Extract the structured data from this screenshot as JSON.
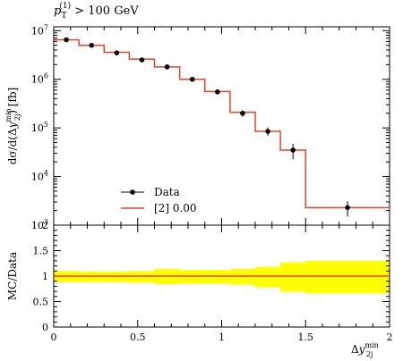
{
  "chart_data": [
    {
      "type": "line",
      "panel": "main",
      "title": "p_T^(1) > 100 GeV",
      "ylabel": "dσ/d(Δy_2j^min) [fb]",
      "yscale": "log",
      "xlim": [
        0,
        2
      ],
      "ylim": [
        1000,
        12000000
      ],
      "y_ticks": [
        {
          "value": 1000,
          "base": "10",
          "exp": "3"
        },
        {
          "value": 10000,
          "base": "10",
          "exp": "4"
        },
        {
          "value": 100000,
          "base": "10",
          "exp": "5"
        },
        {
          "value": 1000000,
          "base": "10",
          "exp": "6"
        },
        {
          "value": 10000000,
          "base": "10",
          "exp": "7"
        }
      ],
      "legend_position": "lower-left",
      "series": [
        {
          "name": "Data",
          "style": "points",
          "color": "#000000",
          "x": [
            0.075,
            0.225,
            0.375,
            0.525,
            0.675,
            0.825,
            0.975,
            1.125,
            1.275,
            1.425,
            1.75
          ],
          "y": [
            6500000,
            5000000,
            3500000,
            2500000,
            1800000,
            1000000,
            550000,
            200000,
            85000,
            35000,
            2300
          ],
          "y_err": [
            0.05,
            0.05,
            0.05,
            0.06,
            0.08,
            0.08,
            0.1,
            0.15,
            0.2,
            0.35,
            0.35
          ]
        },
        {
          "name": "[2] 0.00",
          "style": "step",
          "color": "#e8432a",
          "bin_edges": [
            0,
            0.15,
            0.3,
            0.45,
            0.6,
            0.75,
            0.9,
            1.05,
            1.2,
            1.35,
            1.5,
            2.0
          ],
          "values": [
            6500000,
            5000000,
            3600000,
            2600000,
            1800000,
            1000000,
            560000,
            210000,
            85000,
            35000,
            2300
          ]
        }
      ]
    },
    {
      "type": "area",
      "panel": "ratio",
      "ylabel": "MC/Data",
      "xlabel": "Δy_2j^min",
      "xlim": [
        0,
        2
      ],
      "ylim": [
        0,
        2
      ],
      "x_ticks": [
        "0",
        "0.5",
        "1",
        "1.5",
        "2"
      ],
      "y_ticks": [
        "0",
        "0.5",
        "1",
        "1.5",
        "2"
      ],
      "reference_line": 1.0,
      "band_color": "#ffff00",
      "line_color": "#e8432a",
      "bin_edges": [
        0,
        0.15,
        0.3,
        0.45,
        0.6,
        0.75,
        0.9,
        1.05,
        1.2,
        1.35,
        1.5,
        2.0
      ],
      "band_low": [
        0.88,
        0.88,
        0.88,
        0.87,
        0.84,
        0.85,
        0.85,
        0.83,
        0.78,
        0.69,
        0.66
      ],
      "band_high": [
        1.1,
        1.09,
        1.09,
        1.1,
        1.14,
        1.12,
        1.12,
        1.14,
        1.18,
        1.27,
        1.3
      ],
      "values": [
        1.0,
        1.0,
        1.0,
        1.0,
        1.0,
        1.0,
        1.0,
        1.0,
        1.0,
        1.0,
        1.0
      ]
    }
  ],
  "header": {
    "label_main": "p",
    "label_sub": "T",
    "label_sup": "(1)",
    "label_rest": " > 100 GeV"
  },
  "axes": {
    "main_y": {
      "d1": "dσ/d(Δ",
      "y": "y",
      "sup": "min",
      "sub": "2j",
      "close": ") [fb]"
    },
    "ratio_y": "MC/Data",
    "x": {
      "delta": "Δ",
      "y": "y",
      "sup": "min",
      "sub": "2j"
    }
  },
  "legend": {
    "data_label": "Data",
    "mc_label": "[2] 0.00"
  }
}
